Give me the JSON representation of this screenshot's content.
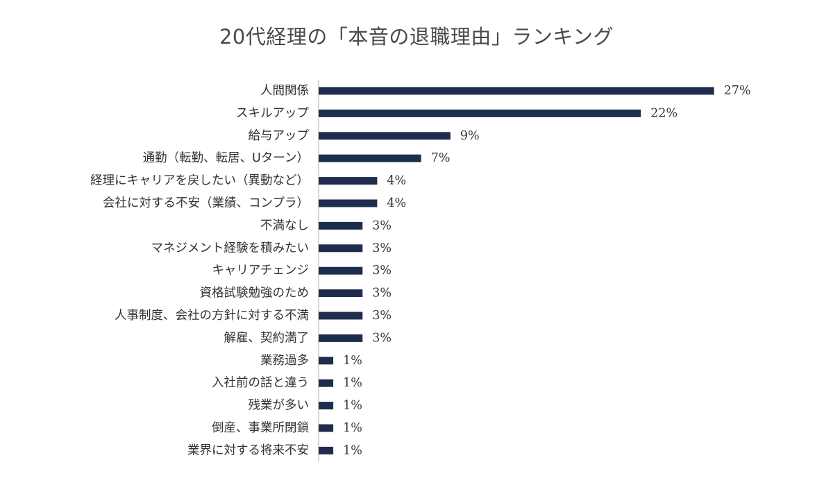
{
  "chart_data": {
    "type": "bar",
    "orientation": "horizontal",
    "title": "20代経理の「本音の退職理由」ランキング",
    "categories": [
      "人間関係",
      "スキルアップ",
      "給与アップ",
      "通勤（転勤、転居、Uターン）",
      "経理にキャリアを戻したい（異動など）",
      "会社に対する不安（業績、コンプラ）",
      "不満なし",
      "マネジメント経験を積みたい",
      "キャリアチェンジ",
      "資格試験勉強のため",
      "人事制度、会社の方針に対する不満",
      "解雇、契約満了",
      "業務過多",
      "入社前の話と違う",
      "残業が多い",
      "倒産、事業所閉鎖",
      "業界に対する将来不安"
    ],
    "values": [
      27,
      22,
      9,
      7,
      4,
      4,
      3,
      3,
      3,
      3,
      3,
      3,
      1,
      1,
      1,
      1,
      1
    ],
    "value_labels": [
      "27%",
      "22%",
      "9%",
      "7%",
      "4%",
      "4%",
      "3%",
      "3%",
      "3%",
      "3%",
      "3%",
      "3%",
      "1%",
      "1%",
      "1%",
      "1%",
      "1%"
    ],
    "xlim": [
      0,
      28
    ],
    "unit": "%",
    "grid": false,
    "legend": "none",
    "bar_color": "#1f2d4d"
  }
}
